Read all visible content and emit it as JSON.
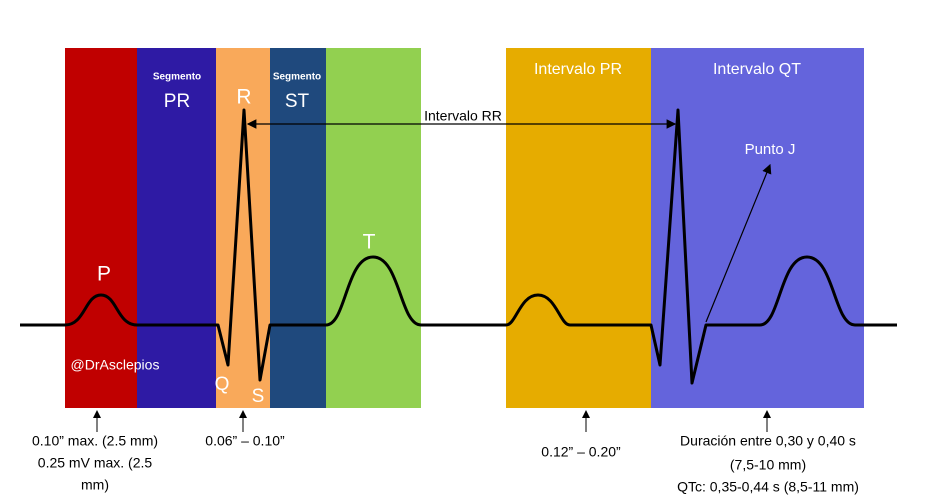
{
  "bands": {
    "p_wave": "P",
    "segmento_pr": {
      "small": "Segmento",
      "big": "PR"
    },
    "r_wave": "R",
    "segmento_st": {
      "small": "Segmento",
      "big": "ST"
    },
    "t_wave": "T",
    "intervalo_pr": "Intervalo PR",
    "intervalo_qt": "Intervalo QT",
    "q_wave": "Q",
    "s_wave": "S"
  },
  "annotations": {
    "intervalo_rr": "Intervalo RR",
    "punto_j": "Punto J",
    "watermark": "@DrAsclepios"
  },
  "footnotes": {
    "p": [
      "0.10” max. (2.5 mm)",
      "0.25 mV max. (2.5",
      "mm)"
    ],
    "qrs": "0.06” – 0.10”",
    "pr": "0.12” – 0.20”",
    "qt": [
      "Duración entre 0,30 y 0,40 s",
      "(7,5-10 mm)",
      "QTc: 0,35-0,44 s (8,5-11 mm)"
    ]
  }
}
